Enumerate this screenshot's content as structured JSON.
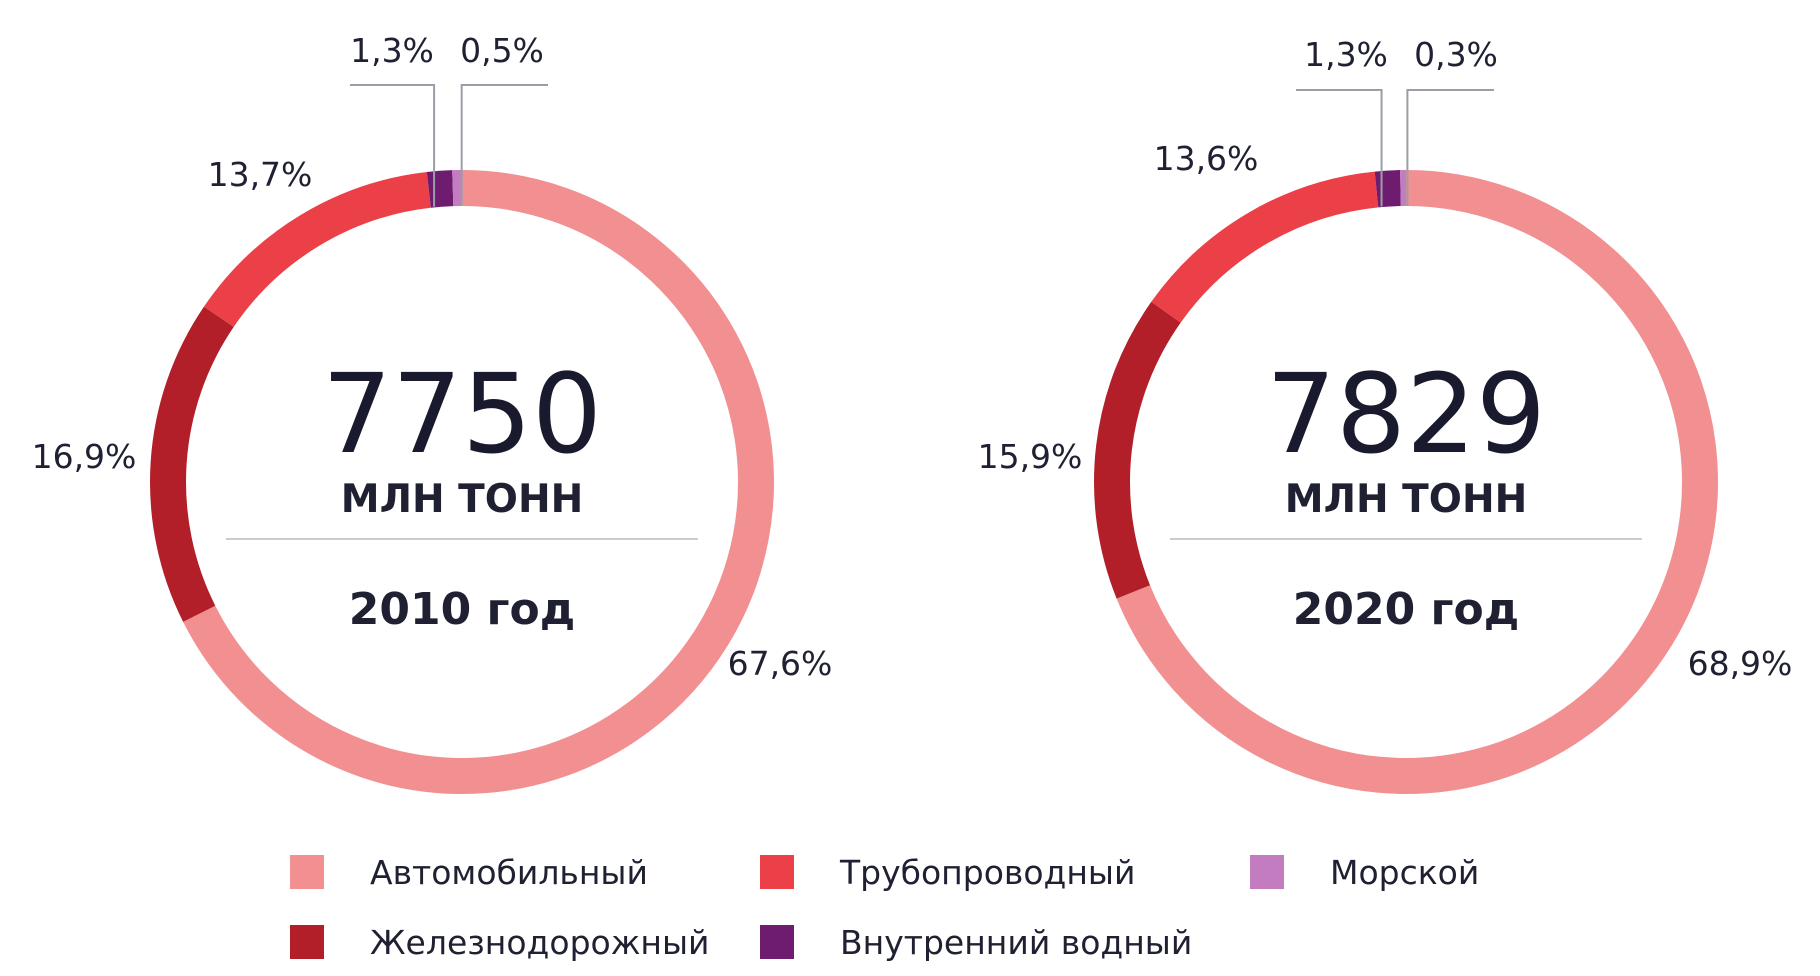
{
  "chart_data": [
    {
      "type": "pie",
      "variant": "donut",
      "center_value": "7750",
      "center_unit": "МЛН ТОНН",
      "center_year": "2010 год",
      "slices": [
        {
          "key": "road",
          "label": "Автомобильный",
          "value": 67.6,
          "value_label": "67,6%"
        },
        {
          "key": "sea",
          "label": "Морской",
          "value": 0.5,
          "value_label": "0,5%"
        },
        {
          "key": "inland",
          "label": "Внутренний водный",
          "value": 1.3,
          "value_label": "1,3%"
        },
        {
          "key": "pipeline",
          "label": "Трубопроводный",
          "value": 13.7,
          "value_label": "13,7%"
        },
        {
          "key": "rail",
          "label": "Железнодорожный",
          "value": 16.9,
          "value_label": "16,9%"
        }
      ]
    },
    {
      "type": "pie",
      "variant": "donut",
      "center_value": "7829",
      "center_unit": "МЛН ТОНН",
      "center_year": "2020 год",
      "slices": [
        {
          "key": "road",
          "label": "Автомобильный",
          "value": 68.9,
          "value_label": "68,9%"
        },
        {
          "key": "sea",
          "label": "Морской",
          "value": 0.3,
          "value_label": "0,3%"
        },
        {
          "key": "inland",
          "label": "Внутренний водный",
          "value": 1.3,
          "value_label": "1,3%"
        },
        {
          "key": "pipeline",
          "label": "Трубопроводный",
          "value": 13.6,
          "value_label": "13,6%"
        },
        {
          "key": "rail",
          "label": "Железнодорожный",
          "value": 15.9,
          "value_label": "15,9%"
        }
      ]
    }
  ],
  "legend": {
    "items": [
      {
        "key": "road",
        "label": "Автомобильный",
        "color": "#f28f91"
      },
      {
        "key": "pipeline",
        "label": "Трубопроводный",
        "color": "#ec4049"
      },
      {
        "key": "sea",
        "label": "Морской",
        "color": "#c47cc0"
      },
      {
        "key": "rail",
        "label": "Железнодорожный",
        "color": "#b21f29"
      },
      {
        "key": "inland",
        "label": "Внутренний водный",
        "color": "#6e1c70"
      }
    ]
  },
  "colors": {
    "road": "#f28f91",
    "pipeline": "#ec4049",
    "sea": "#c47cc0",
    "rail": "#b21f29",
    "inland": "#6e1c70",
    "divider": "#c9ccd2",
    "leader": "#9a9ea6"
  }
}
